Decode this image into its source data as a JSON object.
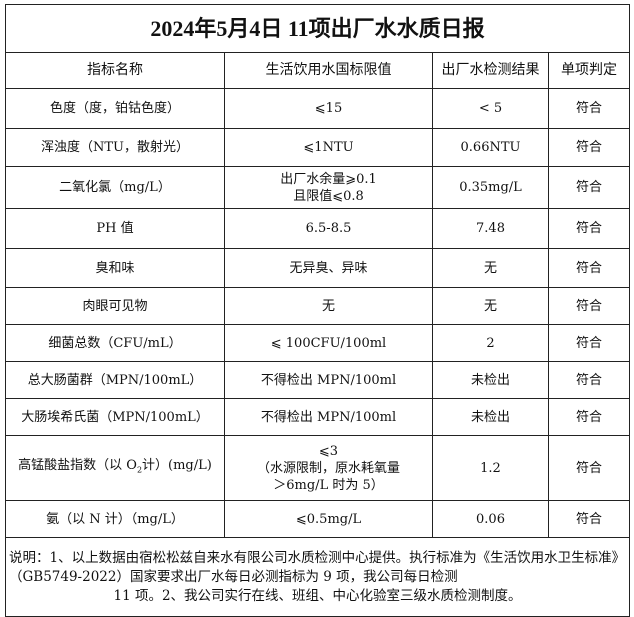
{
  "title": "2024年5月4日 11项出厂水水质日报",
  "headers": [
    "指标名称",
    "生活饮用水国标限值",
    "出厂水检测结果",
    "单项判定"
  ],
  "rows": [
    {
      "name": "色度（度，铂钴色度）",
      "limit": "⩽15",
      "result": "< 5",
      "verdict": "符合"
    },
    {
      "name": "浑浊度（NTU，散射光）",
      "limit": "⩽1NTU",
      "result": "0.66NTU",
      "verdict": "符合"
    },
    {
      "name": "二氧化氯（mg/L）",
      "limit": "出厂水余量⩾0.1",
      "limit2": "且限值⩽0.8",
      "result": "0.35mg/L",
      "verdict": "符合"
    },
    {
      "name": "PH 值",
      "limit": "6.5-8.5",
      "result": "7.48",
      "verdict": "符合"
    },
    {
      "name": "臭和味",
      "limit": "无异臭、异味",
      "result": "无",
      "verdict": "符合"
    },
    {
      "name": "肉眼可见物",
      "limit": "无",
      "result": "无",
      "verdict": "符合"
    },
    {
      "name": "细菌总数（CFU/mL）",
      "limit": "⩽ 100CFU/100ml",
      "result": "2",
      "verdict": "符合"
    },
    {
      "name": "总大肠菌群（MPN/100mL）",
      "limit": "不得检出 MPN/100ml",
      "result": "未检出",
      "verdict": "符合"
    },
    {
      "name": "大肠埃希氏菌（MPN/100mL）",
      "limit": "不得检出 MPN/100ml",
      "result": "未检出",
      "verdict": "符合"
    },
    {
      "name_a": "高锰酸盐指数（以 O",
      "name_sub": "2",
      "name_b": "计）(mg/L)",
      "limit": "⩽3",
      "limit2": "（水源限制，原水耗氧量",
      "limit3": "＞6mg/L 时为 5）",
      "result": "1.2",
      "verdict": "符合"
    },
    {
      "name": "氨（以 N 计）（mg/L）",
      "limit": "⩽0.5mg/L",
      "result": "0.06",
      "verdict": "符合"
    }
  ],
  "note_a": "说明：1、以上数据由宿松松兹自来水有限公司水质检测中心提供。执行标准为《生活饮用水卫生标准》（GB5749-2022）国家要求出厂水每日必测指标为 9 项，我公司每日检测",
  "note_b": "11 项。2、我公司实行在线、班组、中心化验室三级水质检测制度。"
}
